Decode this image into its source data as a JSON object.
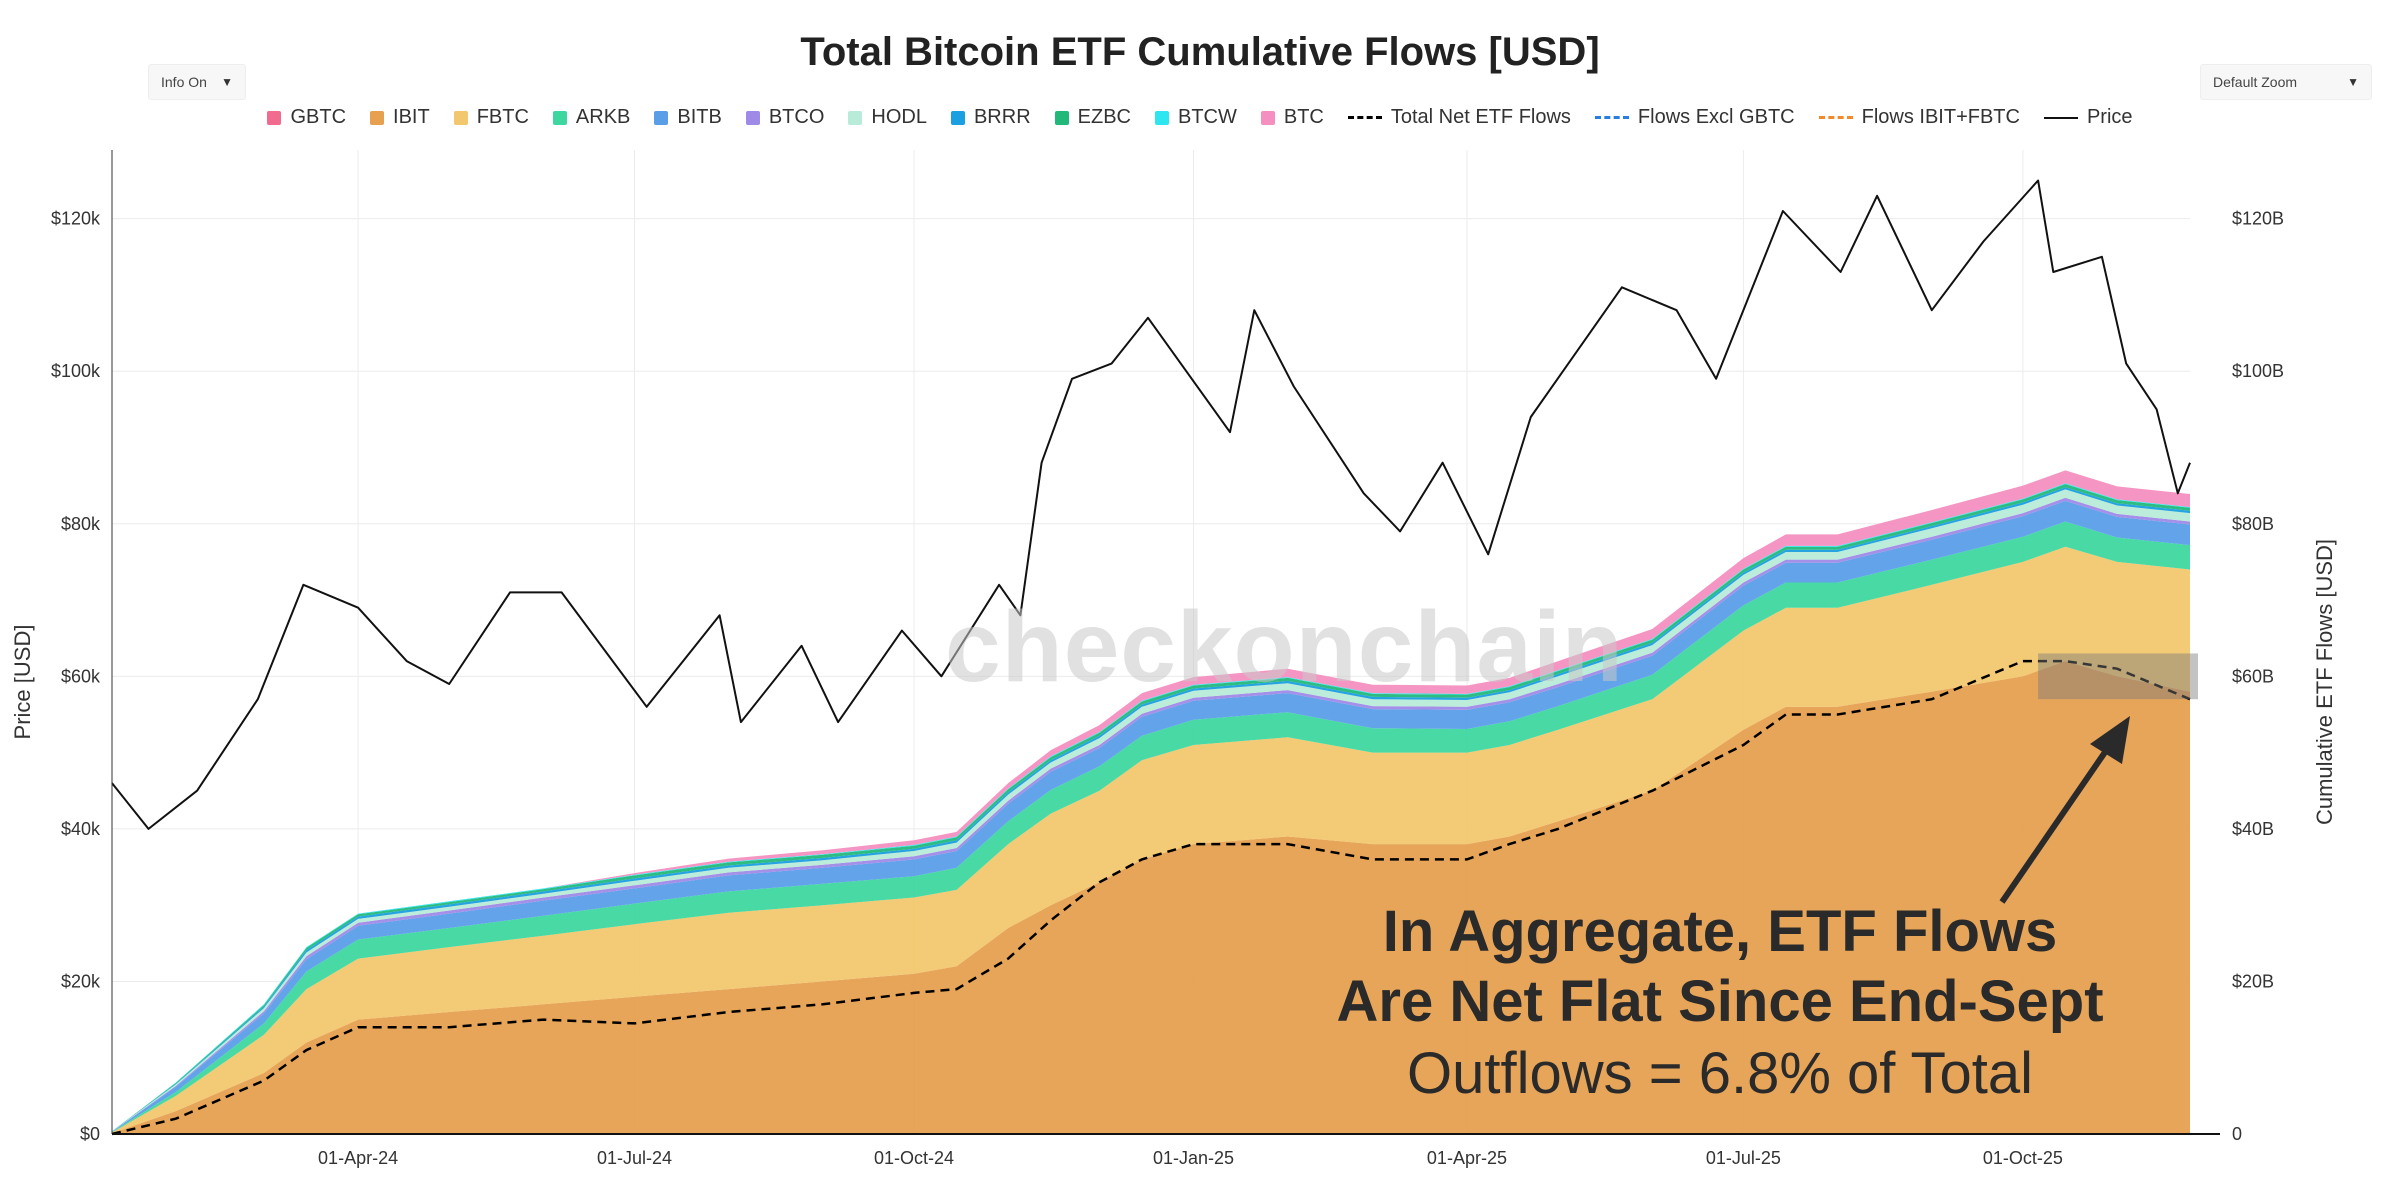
{
  "header": {
    "title": "Total Bitcoin ETF Cumulative Flows [USD]",
    "info_dropdown": "Info On",
    "zoom_dropdown": "Default Zoom"
  },
  "watermark": "checkonchain",
  "annotation": {
    "line1": "In Aggregate, ETF Flows",
    "line2": "Are Net Flat Since End-Sept",
    "line3": "Outflows = 6.8% of Total"
  },
  "colors": {
    "GBTC": "#f06b8e",
    "IBIT": "#e6a050",
    "FBTC": "#f2c76e",
    "ARKB": "#3ed7a0",
    "BITB": "#5a9ee8",
    "BTCO": "#a08ae8",
    "HODL": "#b8ecd8",
    "BRRR": "#1a9fe0",
    "EZBC": "#22b87a",
    "BTCW": "#2de6f0",
    "BTC": "#f48fc0",
    "net_flows": "#000000",
    "flows_excl_gbtc": "#2a7de0",
    "flows_ibit_fbtc": "#f08a2a",
    "price": "#111111",
    "highlight_box": "#7a7a7a",
    "arrow": "#2a2a2a"
  },
  "chart_data": {
    "type": "area",
    "title": "Total Bitcoin ETF Cumulative Flows [USD]",
    "y_left_label": "Price [USD]",
    "y_right_label": "Cumulative ETF Flows [USD]",
    "x_tick_labels": [
      "01-Apr-24",
      "01-Jul-24",
      "01-Oct-24",
      "01-Jan-25",
      "01-Apr-25",
      "01-Jul-25",
      "01-Oct-25"
    ],
    "x_tick_dates": [
      "2024-04-01",
      "2024-07-01",
      "2024-10-01",
      "2025-01-01",
      "2025-04-01",
      "2025-07-01",
      "2025-10-01"
    ],
    "x_range": [
      "2024-01-11",
      "2025-11-25"
    ],
    "y_left_ticks": [
      "$0",
      "$20k",
      "$40k",
      "$60k",
      "$80k",
      "$100k",
      "$120k"
    ],
    "y_left_range": [
      0,
      129000
    ],
    "y_right_ticks": [
      "0",
      "$20B",
      "$40B",
      "$60B",
      "$80B",
      "$100B",
      "$120B"
    ],
    "y_right_range": [
      0,
      129000000000
    ],
    "grid": true,
    "legend_position": "top",
    "legend": [
      {
        "name": "GBTC",
        "style": "swatch"
      },
      {
        "name": "IBIT",
        "style": "swatch"
      },
      {
        "name": "FBTC",
        "style": "swatch"
      },
      {
        "name": "ARKB",
        "style": "swatch"
      },
      {
        "name": "BITB",
        "style": "swatch"
      },
      {
        "name": "BTCO",
        "style": "swatch"
      },
      {
        "name": "HODL",
        "style": "swatch"
      },
      {
        "name": "BRRR",
        "style": "swatch"
      },
      {
        "name": "EZBC",
        "style": "swatch"
      },
      {
        "name": "BTCW",
        "style": "swatch"
      },
      {
        "name": "BTC",
        "style": "swatch"
      },
      {
        "name": "Total Net ETF Flows",
        "style": "dash",
        "color_key": "net_flows"
      },
      {
        "name": "Flows Excl GBTC",
        "style": "dash",
        "color_key": "flows_excl_gbtc"
      },
      {
        "name": "Flows IBIT+FBTC",
        "style": "dash",
        "color_key": "flows_ibit_fbtc"
      },
      {
        "name": "Price",
        "style": "solid",
        "color_key": "price"
      }
    ],
    "flow_dates": [
      "2024-01-11",
      "2024-02-01",
      "2024-03-01",
      "2024-03-15",
      "2024-04-01",
      "2024-05-01",
      "2024-06-01",
      "2024-07-01",
      "2024-08-01",
      "2024-09-01",
      "2024-10-01",
      "2024-10-15",
      "2024-11-01",
      "2024-11-15",
      "2024-12-01",
      "2024-12-15",
      "2025-01-01",
      "2025-02-01",
      "2025-03-01",
      "2025-04-01",
      "2025-04-15",
      "2025-05-01",
      "2025-06-01",
      "2025-07-01",
      "2025-07-15",
      "2025-08-01",
      "2025-09-01",
      "2025-10-01",
      "2025-10-15",
      "2025-11-01",
      "2025-11-25"
    ],
    "flow_series": [
      {
        "name": "IBIT",
        "values": [
          0.1,
          3,
          8,
          12,
          15,
          16,
          17,
          18,
          19,
          20,
          21,
          22,
          27,
          30,
          33,
          36,
          38,
          39,
          38,
          38,
          39,
          41,
          45,
          53,
          56,
          56,
          58,
          60,
          62,
          60,
          58
        ]
      },
      {
        "name": "FBTC",
        "values": [
          0.1,
          2,
          5,
          7,
          8,
          8.5,
          9,
          9.5,
          10,
          10,
          10,
          10,
          11,
          12,
          12,
          13,
          13,
          13,
          12,
          12,
          12,
          12,
          12,
          13,
          13,
          13,
          14,
          15,
          15,
          15,
          16
        ]
      },
      {
        "name": "ARKB",
        "values": [
          0.05,
          0.5,
          1.5,
          2.3,
          2.5,
          2.5,
          2.6,
          2.7,
          2.8,
          2.8,
          2.8,
          2.9,
          3,
          3.1,
          3.2,
          3.2,
          3.3,
          3.3,
          3.2,
          3.1,
          3.1,
          3.1,
          3.2,
          3.3,
          3.3,
          3.3,
          3.3,
          3.3,
          3.3,
          3.2,
          3.2
        ]
      },
      {
        "name": "BITB",
        "values": [
          0.05,
          0.7,
          1.3,
          1.6,
          1.8,
          1.9,
          2,
          2,
          2.1,
          2.1,
          2.2,
          2.2,
          2.3,
          2.4,
          2.4,
          2.5,
          2.5,
          2.5,
          2.5,
          2.5,
          2.5,
          2.5,
          2.5,
          2.6,
          2.6,
          2.6,
          2.6,
          2.7,
          2.7,
          2.7,
          2.7
        ]
      },
      {
        "name": "BTCO",
        "values": [
          0.02,
          0.1,
          0.3,
          0.4,
          0.4,
          0.4,
          0.4,
          0.4,
          0.4,
          0.4,
          0.4,
          0.4,
          0.4,
          0.4,
          0.4,
          0.4,
          0.4,
          0.4,
          0.4,
          0.4,
          0.4,
          0.4,
          0.4,
          0.4,
          0.4,
          0.4,
          0.4,
          0.4,
          0.4,
          0.4,
          0.4
        ]
      },
      {
        "name": "HODL",
        "values": [
          0.01,
          0.2,
          0.4,
          0.5,
          0.5,
          0.5,
          0.5,
          0.6,
          0.6,
          0.6,
          0.7,
          0.7,
          0.8,
          0.8,
          0.9,
          0.9,
          0.9,
          0.9,
          0.9,
          0.9,
          0.9,
          1,
          1,
          1,
          1,
          1,
          1.1,
          1.1,
          1.1,
          1.1,
          1.1
        ]
      },
      {
        "name": "BRRR",
        "values": [
          0.01,
          0.1,
          0.2,
          0.3,
          0.3,
          0.3,
          0.3,
          0.3,
          0.3,
          0.3,
          0.3,
          0.3,
          0.3,
          0.3,
          0.3,
          0.3,
          0.3,
          0.3,
          0.3,
          0.3,
          0.3,
          0.3,
          0.3,
          0.3,
          0.3,
          0.3,
          0.3,
          0.3,
          0.3,
          0.3,
          0.3
        ]
      },
      {
        "name": "EZBC",
        "values": [
          0.01,
          0.1,
          0.2,
          0.3,
          0.3,
          0.3,
          0.3,
          0.4,
          0.4,
          0.4,
          0.4,
          0.4,
          0.4,
          0.4,
          0.4,
          0.4,
          0.4,
          0.4,
          0.4,
          0.4,
          0.4,
          0.4,
          0.4,
          0.4,
          0.4,
          0.4,
          0.4,
          0.4,
          0.4,
          0.4,
          0.4
        ]
      },
      {
        "name": "BTCW",
        "values": [
          0.01,
          0.05,
          0.1,
          0.1,
          0.1,
          0.1,
          0.1,
          0.1,
          0.1,
          0.1,
          0.1,
          0.1,
          0.1,
          0.1,
          0.1,
          0.1,
          0.1,
          0.1,
          0.1,
          0.1,
          0.1,
          0.1,
          0.1,
          0.1,
          0.1,
          0.1,
          0.1,
          0.1,
          0.1,
          0.1,
          0.1
        ]
      },
      {
        "name": "BTC",
        "values": [
          0,
          0,
          0,
          0,
          0,
          0,
          0,
          0.2,
          0.4,
          0.5,
          0.6,
          0.6,
          0.7,
          0.8,
          0.9,
          1,
          1,
          1.1,
          1.1,
          1.1,
          1.1,
          1.2,
          1.3,
          1.4,
          1.5,
          1.5,
          1.6,
          1.7,
          1.7,
          1.7,
          1.7
        ]
      }
    ],
    "net_flows": {
      "name": "Total Net ETF Flows",
      "values": [
        0,
        2,
        7,
        11,
        14,
        14,
        15,
        14.5,
        16,
        17,
        18.5,
        19,
        23,
        28,
        33,
        36,
        38,
        38,
        36,
        36,
        38,
        40,
        45,
        51,
        55,
        55,
        57,
        62,
        62,
        61,
        57
      ]
    },
    "price": {
      "name": "Price",
      "dates": [
        "2024-01-11",
        "2024-01-23",
        "2024-02-08",
        "2024-02-28",
        "2024-03-14",
        "2024-04-01",
        "2024-04-17",
        "2024-05-01",
        "2024-05-21",
        "2024-06-07",
        "2024-07-05",
        "2024-07-29",
        "2024-08-05",
        "2024-08-25",
        "2024-09-06",
        "2024-09-27",
        "2024-10-10",
        "2024-10-29",
        "2024-11-05",
        "2024-11-12",
        "2024-11-22",
        "2024-12-05",
        "2024-12-17",
        "2025-01-13",
        "2025-01-21",
        "2025-02-03",
        "2025-02-26",
        "2025-03-10",
        "2025-03-24",
        "2025-04-08",
        "2025-04-22",
        "2025-05-22",
        "2025-06-09",
        "2025-06-22",
        "2025-07-14",
        "2025-08-02",
        "2025-08-14",
        "2025-09-01",
        "2025-09-18",
        "2025-10-06",
        "2025-10-11",
        "2025-10-27",
        "2025-11-04",
        "2025-11-14",
        "2025-11-21",
        "2025-11-25"
      ],
      "values": [
        46000,
        40000,
        45000,
        57000,
        72000,
        69000,
        62000,
        59000,
        71000,
        71000,
        56000,
        68000,
        54000,
        64000,
        54000,
        66000,
        60000,
        72000,
        68000,
        88000,
        99000,
        101000,
        107000,
        92000,
        108000,
        98000,
        84000,
        79000,
        88000,
        76000,
        94000,
        111000,
        108000,
        99000,
        121000,
        113000,
        123000,
        108000,
        117000,
        125000,
        113000,
        115000,
        101000,
        95000,
        84000,
        88000
      ]
    }
  }
}
